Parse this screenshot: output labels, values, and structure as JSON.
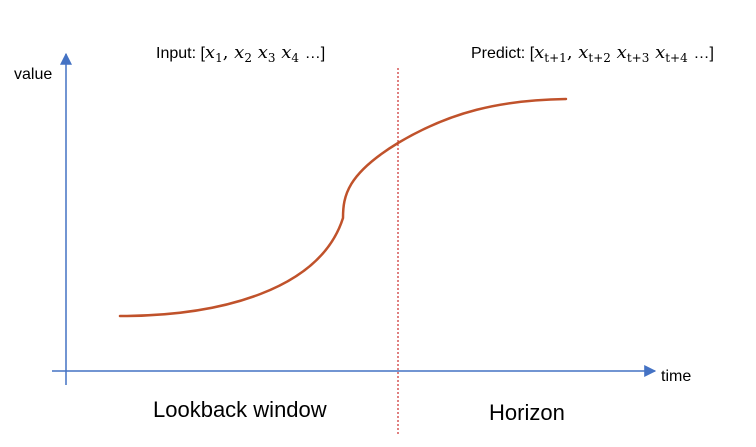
{
  "axes": {
    "y_label": "value",
    "x_label": "time",
    "color": "#4472c4"
  },
  "curve": {
    "color": "#c0522b"
  },
  "divider": {
    "color": "#c00000"
  },
  "input": {
    "prefix": "Input: [",
    "items": [
      {
        "var": "x",
        "sub": "1",
        "sep": ", "
      },
      {
        "var": "x",
        "sub": "2",
        "sep": " "
      },
      {
        "var": "x",
        "sub": "3",
        "sep": " "
      },
      {
        "var": "x",
        "sub": "4",
        "sep": " "
      }
    ],
    "suffix": "…]"
  },
  "predict": {
    "prefix": "Predict: [",
    "items": [
      {
        "var": "x",
        "sub": "t+1",
        "sep": ", "
      },
      {
        "var": "x",
        "sub": "t+2",
        "sep": " "
      },
      {
        "var": "x",
        "sub": "t+3",
        "sep": " "
      },
      {
        "var": "x",
        "sub": "t+4",
        "sep": " "
      }
    ],
    "suffix": "…]"
  },
  "regions": {
    "lookback": "Lookback window",
    "horizon": "Horizon"
  }
}
